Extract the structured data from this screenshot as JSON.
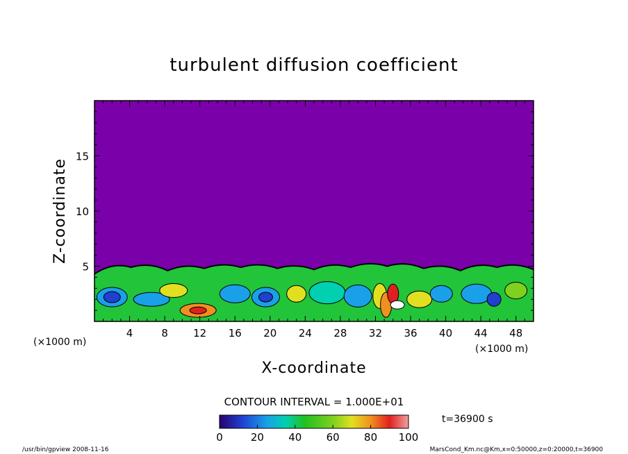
{
  "chart_data": {
    "type": "heatmap",
    "title": "turbulent diffusion coefficient",
    "xlabel": "X-coordinate",
    "ylabel": "Z-coordinate",
    "x_unit_left": "(×1000 m)",
    "x_unit_right": "(×1000 m)",
    "xlim": [
      0,
      50
    ],
    "ylim": [
      0,
      20
    ],
    "x_ticks": [
      4,
      8,
      12,
      16,
      20,
      24,
      28,
      32,
      36,
      40,
      44,
      48
    ],
    "x_tick_labels": [
      "4",
      "8",
      "12",
      "16",
      "20",
      "24",
      "28",
      "32",
      "36",
      "40",
      "44",
      "48"
    ],
    "y_ticks": [
      5,
      10,
      15
    ],
    "y_tick_labels": [
      "5",
      "10",
      "15"
    ],
    "contour_interval_label": "CONTOUR INTERVAL = 1.000E+01",
    "time_label": "t=36900 s",
    "colorbar": {
      "min": 0,
      "max": 100,
      "ticks": [
        0,
        20,
        40,
        60,
        80,
        100
      ],
      "tick_labels": [
        "0",
        "20",
        "40",
        "60",
        "80",
        "100"
      ]
    },
    "background_value": 0,
    "boundary_layer_top_z": [
      4.3,
      4.9,
      4.6,
      4.8,
      4.9,
      4.8,
      4.7,
      4.9,
      5.0,
      4.8,
      4.6,
      4.9,
      4.7
    ]
  },
  "footer": {
    "left": "/usr/bin/gpview  2008-11-16",
    "right": "MarsCond_Km.nc@Km,x=0:50000,z=0:20000,t=36900"
  },
  "colors": {
    "background_purple": "#7a00aa",
    "plot_border": "#000000"
  }
}
